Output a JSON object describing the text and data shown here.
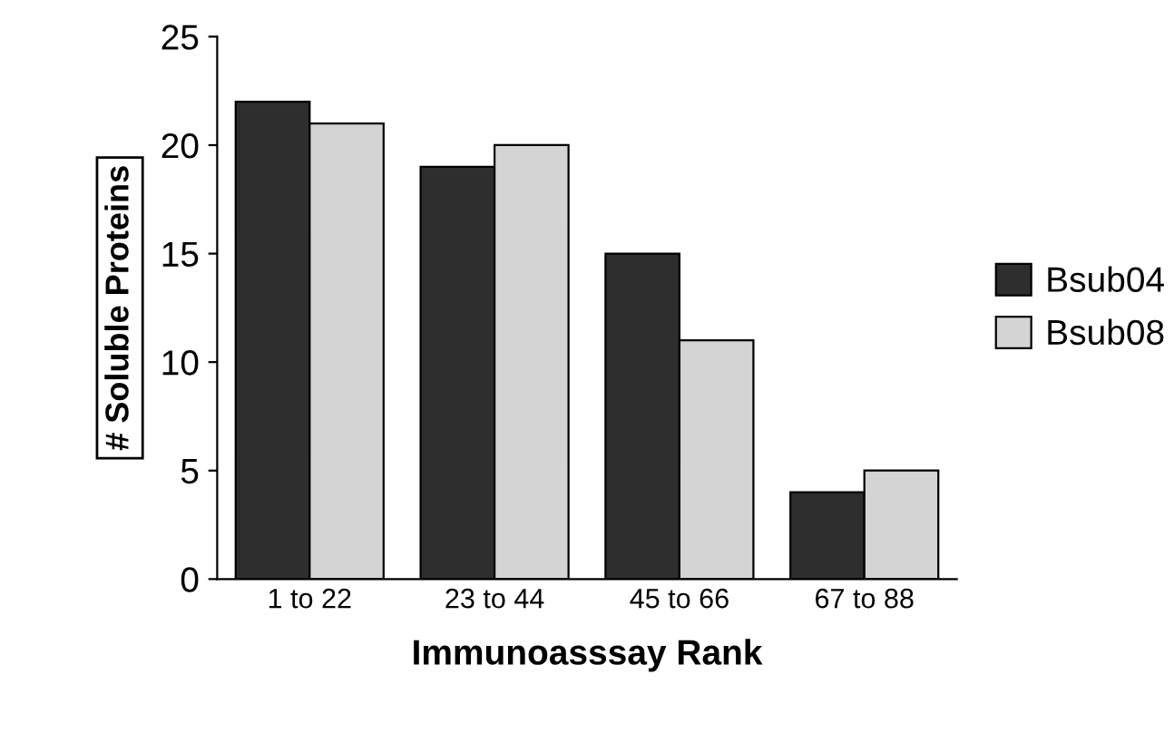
{
  "chart_data": {
    "type": "bar",
    "xlabel": "Immunoasssay Rank",
    "ylabel": "# Soluble Proteins",
    "categories": [
      "1 to 22",
      "23 to 44",
      "45 to 66",
      "67 to 88"
    ],
    "series": [
      {
        "name": "Bsub04",
        "color": "#2e2e2e",
        "values": [
          22,
          19,
          15,
          4
        ]
      },
      {
        "name": "Bsub08",
        "color": "#d4d4d4",
        "values": [
          21,
          20,
          11,
          5
        ]
      }
    ],
    "ylim": [
      0,
      25
    ],
    "yticks": [
      0,
      5,
      10,
      15,
      20,
      25
    ],
    "grid": false,
    "legend": "right"
  }
}
